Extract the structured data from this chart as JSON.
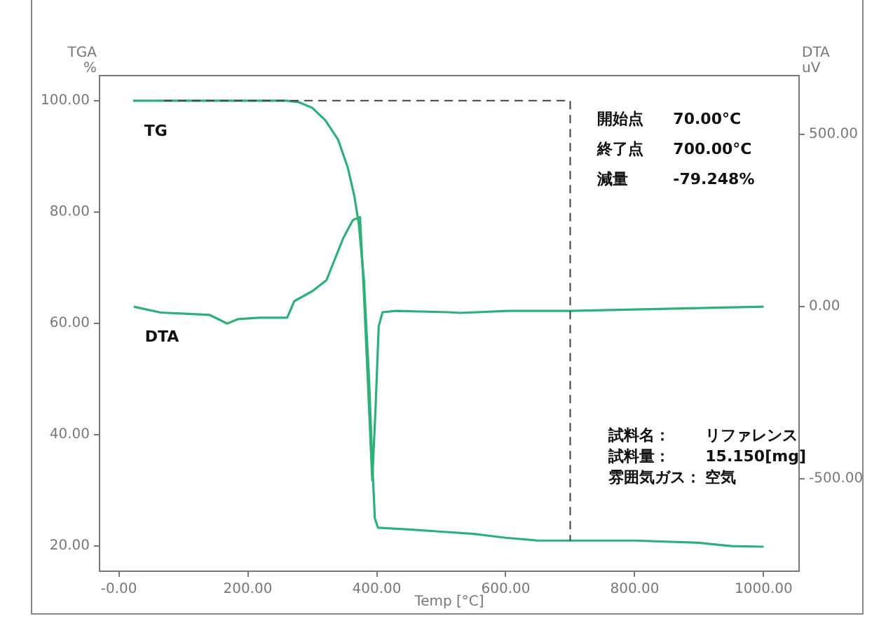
{
  "chart_data": {
    "type": "line",
    "xlabel": "Temp [°C]",
    "ylabel": "TGA\n%",
    "y2label": "DTA\nuV",
    "xlim": [
      -30,
      1055
    ],
    "xticks": [
      {
        "value": 0,
        "label": "-0.00"
      },
      {
        "value": 200,
        "label": "200.00"
      },
      {
        "value": 400,
        "label": "400.00"
      },
      {
        "value": 600,
        "label": "600.00"
      },
      {
        "value": 800,
        "label": "800.00"
      },
      {
        "value": 1000,
        "label": "1000.00"
      }
    ],
    "ylim": [
      15.5,
      104.5
    ],
    "yticks": [
      {
        "value": 20,
        "label": "20.00"
      },
      {
        "value": 40,
        "label": "40.00"
      },
      {
        "value": 60,
        "label": "60.00"
      },
      {
        "value": 80,
        "label": "80.00"
      },
      {
        "value": 100,
        "label": "100.00"
      }
    ],
    "y2lim": [
      -768,
      671
    ],
    "y2ticks": [
      {
        "value": -500,
        "label": "-500.00"
      },
      {
        "value": 0,
        "label": "0.00"
      },
      {
        "value": 500,
        "label": "500.00"
      }
    ],
    "series": [
      {
        "name": "TG",
        "color": "#2fb07a",
        "x": [
          22,
          100,
          200,
          260,
          280,
          300,
          320,
          340,
          355,
          365,
          372,
          380,
          388,
          393,
          397,
          402,
          450,
          500,
          550,
          600,
          650,
          700,
          800,
          900,
          950,
          1000
        ],
        "values": [
          100,
          100,
          100,
          100,
          99.7,
          98.7,
          96.5,
          93,
          88,
          83,
          78,
          68,
          50,
          35,
          25,
          23.3,
          23,
          22.6,
          22.2,
          21.5,
          21,
          21,
          21,
          20.6,
          20,
          19.9
        ]
      },
      {
        "name": "DTA",
        "color": "#2fb07a",
        "axis": "y2",
        "x": [
          23,
          65,
          141,
          168,
          185,
          217,
          261,
          272,
          300,
          322,
          348,
          363,
          374,
          380,
          387,
          393,
          398,
          403,
          409,
          430,
          511,
          530,
          604,
          700,
          800,
          900,
          1000
        ],
        "values": [
          0,
          -17,
          -24,
          -49,
          -36,
          -32,
          -32,
          16,
          45,
          77,
          199,
          252,
          260,
          40,
          -250,
          -504,
          -300,
          -57,
          -16,
          -12,
          -16,
          -18,
          -12,
          -12,
          -8,
          -4,
          0
        ]
      },
      {
        "color": "#404040",
        "line_style": "dashed",
        "type": "line",
        "x": [
          70,
          700,
          700
        ],
        "values": [
          100,
          100,
          21
        ]
      }
    ],
    "annotations": [
      "開始点",
      "70.00°C",
      "終了点",
      "700.00°C",
      "減量",
      "-79.248%",
      "試料名：",
      "リファレンス",
      "試料量：",
      "15.150[mg]",
      "雰囲気ガス：",
      "空気"
    ],
    "grid": false,
    "legend": false,
    "marker": "none",
    "line_style": "solid"
  }
}
